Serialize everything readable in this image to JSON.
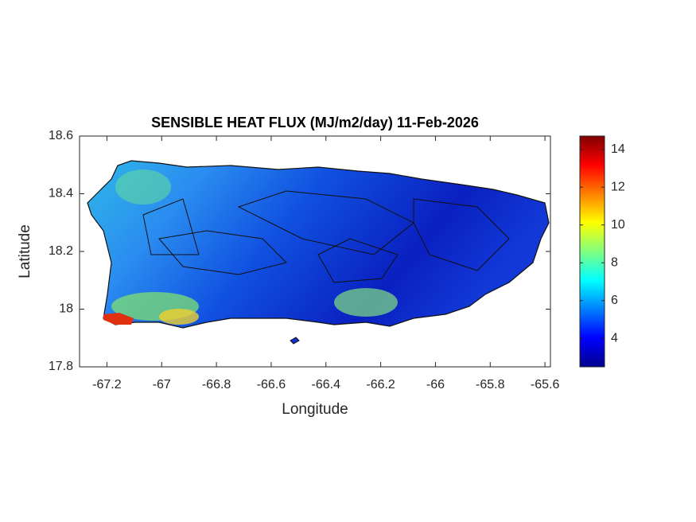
{
  "chart_data": {
    "type": "map",
    "title": "SENSIBLE HEAT FLUX (MJ/m2/day) 11-Feb-2026",
    "xlabel": "Longitude",
    "ylabel": "Latitude",
    "xlim": [
      -67.3,
      -65.58
    ],
    "xticks": [
      -67.2,
      -67,
      -66.8,
      -66.6,
      -66.4,
      -66.2,
      -66,
      -65.8,
      -65.6
    ],
    "ylim": [
      17.8,
      18.6
    ],
    "yticks": [
      17.8,
      18,
      18.2,
      18.4,
      18.6
    ],
    "colorbar": {
      "clim": [
        2.5,
        14.7
      ],
      "ticks": [
        4,
        6,
        8,
        10,
        12,
        14
      ],
      "colormap": "jet"
    }
  }
}
